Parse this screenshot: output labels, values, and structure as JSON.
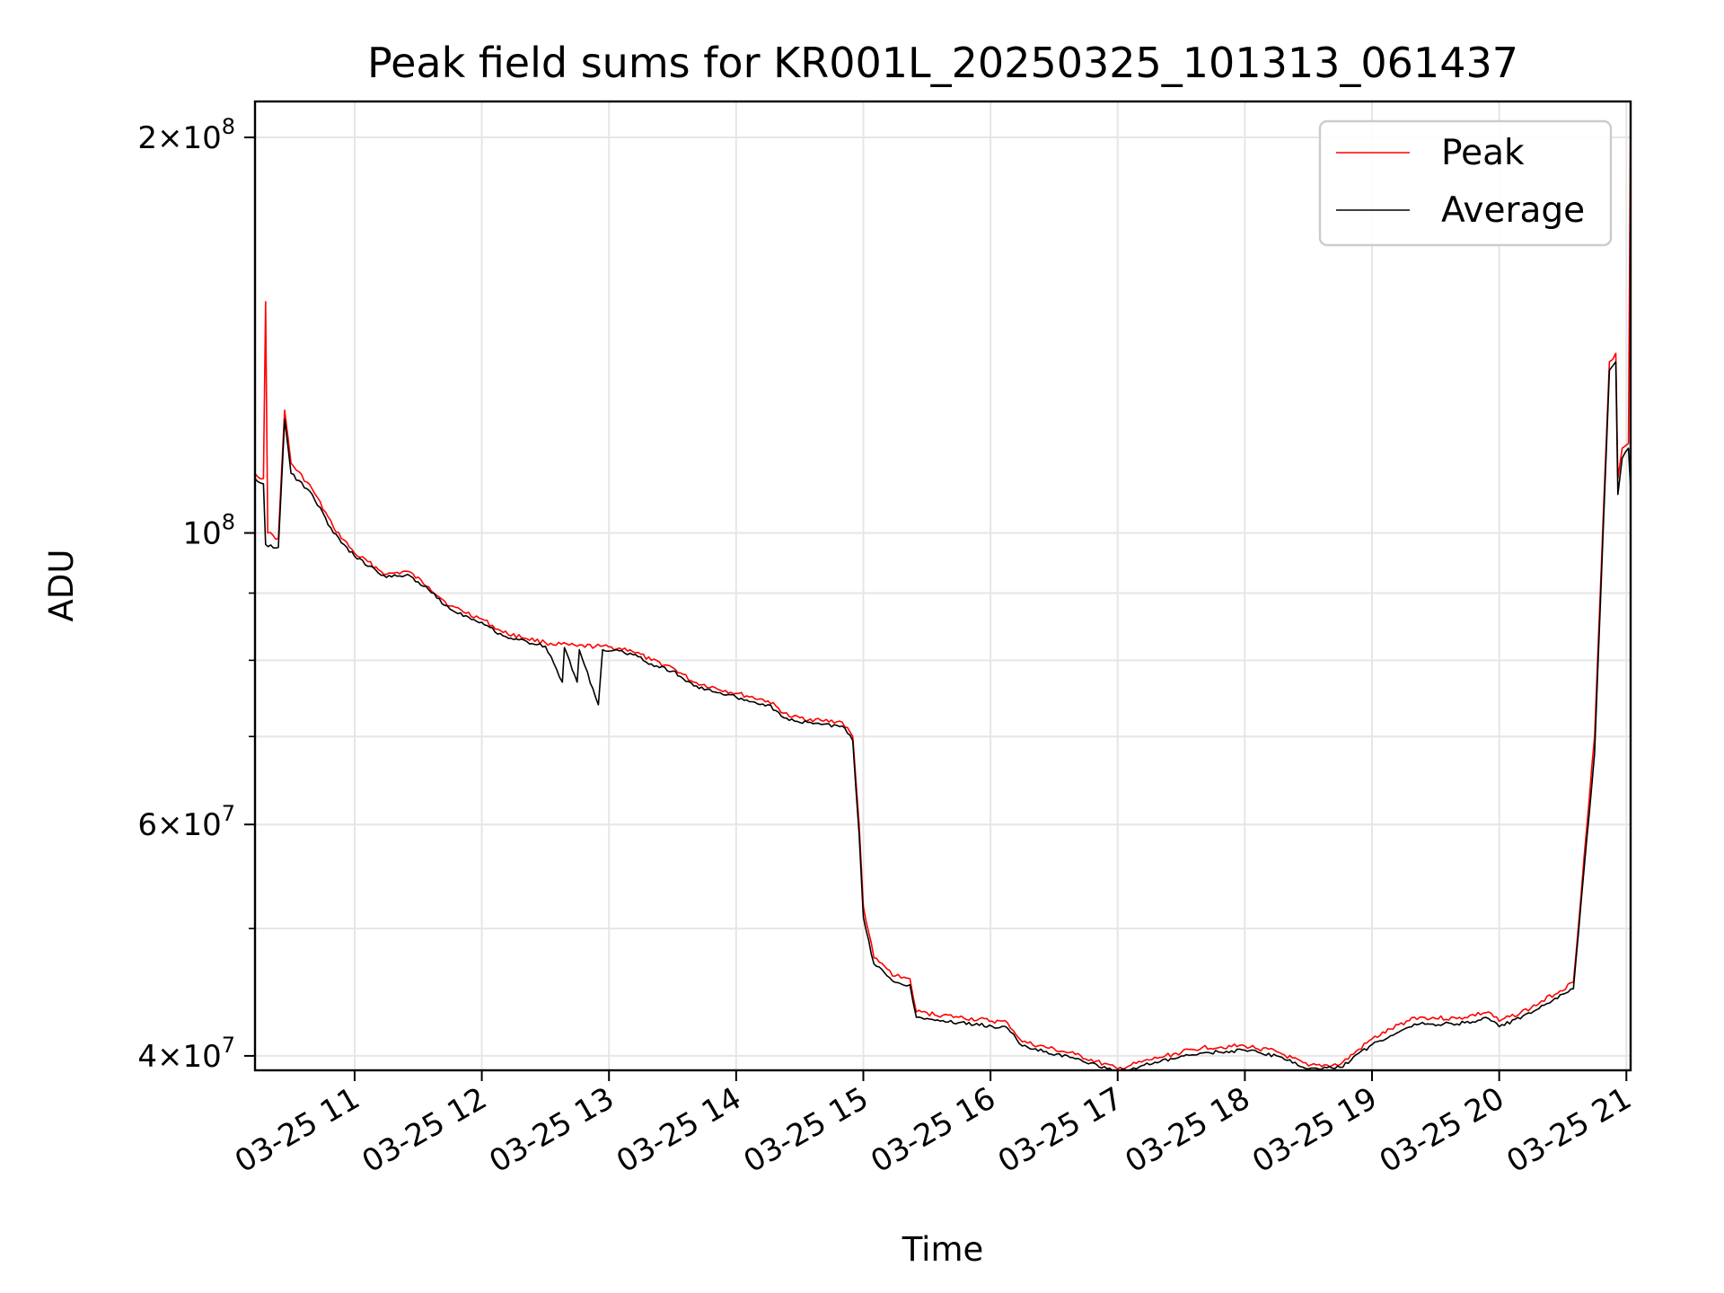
{
  "chart_data": {
    "type": "line",
    "title": "Peak field sums for KR001L_20250325_101313_061437",
    "xlabel": "Time",
    "ylabel": "ADU",
    "yscale": "log",
    "grid": true,
    "legend_position": "top-right",
    "x_tick_labels": [
      "03-25 11",
      "03-25 12",
      "03-25 13",
      "03-25 14",
      "03-25 15",
      "03-25 16",
      "03-25 17",
      "03-25 18",
      "03-25 19",
      "03-25 20",
      "03-25 21"
    ],
    "y_ticks": [
      {
        "value": 40000000,
        "base": "4",
        "exp": "7"
      },
      {
        "value": 60000000,
        "base": "6",
        "exp": "7"
      },
      {
        "value": 100000000,
        "base": "",
        "exp": "8"
      },
      {
        "value": 200000000,
        "base": "2",
        "exp": "8"
      }
    ],
    "y_minor_ticks": [
      50000000,
      70000000,
      80000000,
      90000000
    ],
    "xlim": [
      "2025-03-25 10:13",
      "2025-03-25 21:02"
    ],
    "ylim": [
      39000000,
      213000000
    ],
    "series": [
      {
        "name": "Peak",
        "color": "#ff0000",
        "points": [
          [
            "2025-03-25 10:13",
            111000000
          ],
          [
            "2025-03-25 10:17",
            110000000
          ],
          [
            "2025-03-25 10:18",
            150000000
          ],
          [
            "2025-03-25 10:19",
            100000000
          ],
          [
            "2025-03-25 10:24",
            99000000
          ],
          [
            "2025-03-25 10:27",
            124000000
          ],
          [
            "2025-03-25 10:30",
            113000000
          ],
          [
            "2025-03-25 10:40",
            108000000
          ],
          [
            "2025-03-25 10:50",
            101000000
          ],
          [
            "2025-03-25 11:00",
            96500000
          ],
          [
            "2025-03-25 11:15",
            93000000
          ],
          [
            "2025-03-25 11:25",
            93500000
          ],
          [
            "2025-03-25 11:35",
            91000000
          ],
          [
            "2025-03-25 11:45",
            88000000
          ],
          [
            "2025-03-25 12:00",
            86000000
          ],
          [
            "2025-03-25 12:10",
            84000000
          ],
          [
            "2025-03-25 12:30",
            82500000
          ],
          [
            "2025-03-25 12:45",
            82000000
          ],
          [
            "2025-03-25 12:56",
            82000000
          ],
          [
            "2025-03-25 13:10",
            81500000
          ],
          [
            "2025-03-25 13:20",
            80000000
          ],
          [
            "2025-03-25 13:30",
            79000000
          ],
          [
            "2025-03-25 13:40",
            77000000
          ],
          [
            "2025-03-25 14:00",
            75500000
          ],
          [
            "2025-03-25 14:15",
            74500000
          ],
          [
            "2025-03-25 14:25",
            72500000
          ],
          [
            "2025-03-25 14:40",
            72000000
          ],
          [
            "2025-03-25 14:50",
            71800000
          ],
          [
            "2025-03-25 14:55",
            70000000
          ],
          [
            "2025-03-25 14:58",
            60000000
          ],
          [
            "2025-03-25 15:00",
            52000000
          ],
          [
            "2025-03-25 15:05",
            47500000
          ],
          [
            "2025-03-25 15:15",
            46000000
          ],
          [
            "2025-03-25 15:22",
            45800000
          ],
          [
            "2025-03-25 15:25",
            43200000
          ],
          [
            "2025-03-25 15:45",
            42800000
          ],
          [
            "2025-03-25 16:08",
            42400000
          ],
          [
            "2025-03-25 16:15",
            41000000
          ],
          [
            "2025-03-25 16:40",
            40100000
          ],
          [
            "2025-03-25 17:00",
            39100000
          ],
          [
            "2025-03-25 17:20",
            39900000
          ],
          [
            "2025-03-25 17:40",
            40600000
          ],
          [
            "2025-03-25 18:00",
            40700000
          ],
          [
            "2025-03-25 18:15",
            40300000
          ],
          [
            "2025-03-25 18:30",
            39300000
          ],
          [
            "2025-03-25 18:45",
            39400000
          ],
          [
            "2025-03-25 19:00",
            41200000
          ],
          [
            "2025-03-25 19:20",
            42800000
          ],
          [
            "2025-03-25 19:40",
            42700000
          ],
          [
            "2025-03-25 19:55",
            43200000
          ],
          [
            "2025-03-25 20:00",
            42500000
          ],
          [
            "2025-03-25 20:15",
            43500000
          ],
          [
            "2025-03-25 20:35",
            45500000
          ],
          [
            "2025-03-25 20:45",
            70000000
          ],
          [
            "2025-03-25 20:52",
            135000000
          ],
          [
            "2025-03-25 20:55",
            137000000
          ],
          [
            "2025-03-25 20:56",
            110000000
          ],
          [
            "2025-03-25 20:58",
            116000000
          ],
          [
            "2025-03-25 21:01",
            117000000
          ],
          [
            "2025-03-25 21:02",
            213000000
          ]
        ]
      },
      {
        "name": "Average",
        "color": "#000000",
        "points": [
          [
            "2025-03-25 10:13",
            110000000
          ],
          [
            "2025-03-25 10:17",
            109000000
          ],
          [
            "2025-03-25 10:18",
            98000000
          ],
          [
            "2025-03-25 10:24",
            97500000
          ],
          [
            "2025-03-25 10:27",
            122000000
          ],
          [
            "2025-03-25 10:30",
            111000000
          ],
          [
            "2025-03-25 10:40",
            107000000
          ],
          [
            "2025-03-25 10:50",
            100000000
          ],
          [
            "2025-03-25 11:00",
            96000000
          ],
          [
            "2025-03-25 11:15",
            92500000
          ],
          [
            "2025-03-25 11:25",
            93000000
          ],
          [
            "2025-03-25 11:35",
            90500000
          ],
          [
            "2025-03-25 11:45",
            87500000
          ],
          [
            "2025-03-25 12:00",
            85500000
          ],
          [
            "2025-03-25 12:10",
            83500000
          ],
          [
            "2025-03-25 12:30",
            82000000
          ],
          [
            "2025-03-25 12:38",
            77000000
          ],
          [
            "2025-03-25 12:39",
            81800000
          ],
          [
            "2025-03-25 12:45",
            77000000
          ],
          [
            "2025-03-25 12:46",
            81500000
          ],
          [
            "2025-03-25 12:55",
            74000000
          ],
          [
            "2025-03-25 12:57",
            81500000
          ],
          [
            "2025-03-25 13:10",
            81000000
          ],
          [
            "2025-03-25 13:20",
            79500000
          ],
          [
            "2025-03-25 13:30",
            78500000
          ],
          [
            "2025-03-25 13:40",
            76500000
          ],
          [
            "2025-03-25 14:00",
            75000000
          ],
          [
            "2025-03-25 14:15",
            74000000
          ],
          [
            "2025-03-25 14:25",
            72000000
          ],
          [
            "2025-03-25 14:40",
            71500000
          ],
          [
            "2025-03-25 14:50",
            71300000
          ],
          [
            "2025-03-25 14:55",
            69500000
          ],
          [
            "2025-03-25 14:58",
            59000000
          ],
          [
            "2025-03-25 15:00",
            51000000
          ],
          [
            "2025-03-25 15:05",
            47000000
          ],
          [
            "2025-03-25 15:15",
            45500000
          ],
          [
            "2025-03-25 15:22",
            45300000
          ],
          [
            "2025-03-25 15:25",
            42800000
          ],
          [
            "2025-03-25 15:45",
            42400000
          ],
          [
            "2025-03-25 16:08",
            42000000
          ],
          [
            "2025-03-25 16:15",
            40700000
          ],
          [
            "2025-03-25 16:40",
            39800000
          ],
          [
            "2025-03-25 17:00",
            38900000
          ],
          [
            "2025-03-25 17:20",
            39600000
          ],
          [
            "2025-03-25 17:40",
            40200000
          ],
          [
            "2025-03-25 18:00",
            40400000
          ],
          [
            "2025-03-25 18:15",
            40000000
          ],
          [
            "2025-03-25 18:30",
            39100000
          ],
          [
            "2025-03-25 18:45",
            39200000
          ],
          [
            "2025-03-25 19:00",
            40800000
          ],
          [
            "2025-03-25 19:20",
            42300000
          ],
          [
            "2025-03-25 19:40",
            42300000
          ],
          [
            "2025-03-25 19:55",
            42700000
          ],
          [
            "2025-03-25 20:00",
            42100000
          ],
          [
            "2025-03-25 20:15",
            43100000
          ],
          [
            "2025-03-25 20:35",
            45000000
          ],
          [
            "2025-03-25 20:45",
            68000000
          ],
          [
            "2025-03-25 20:52",
            133000000
          ],
          [
            "2025-03-25 20:55",
            135000000
          ],
          [
            "2025-03-25 20:56",
            107000000
          ],
          [
            "2025-03-25 20:58",
            114000000
          ],
          [
            "2025-03-25 21:01",
            116000000
          ],
          [
            "2025-03-25 21:02",
            108000000
          ]
        ]
      }
    ]
  }
}
